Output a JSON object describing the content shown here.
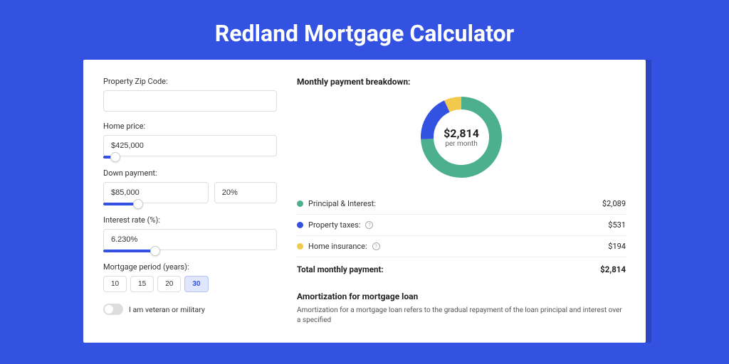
{
  "page": {
    "title": "Redland Mortgage Calculator"
  },
  "form": {
    "zip_label": "Property Zip Code:",
    "zip_value": "",
    "home_price_label": "Home price:",
    "home_price_value": "$425,000",
    "home_price_slider_pct": 7,
    "down_payment_label": "Down payment:",
    "down_payment_value": "$85,000",
    "down_payment_pct": "20%",
    "down_payment_slider_pct": 20,
    "interest_label": "Interest rate (%):",
    "interest_value": "6.230%",
    "interest_slider_pct": 30,
    "period_label": "Mortgage period (years):",
    "periods": [
      "10",
      "15",
      "20",
      "30"
    ],
    "period_active_index": 3,
    "veteran_label": "I am veteran or military",
    "veteran_on": false
  },
  "breakdown": {
    "title": "Monthly payment breakdown:",
    "donut_amount": "$2,814",
    "donut_sub": "per month",
    "items": [
      {
        "label": "Principal & Interest:",
        "value": "$2,089",
        "color": "#4caf8e",
        "fraction": 0.742,
        "info": false
      },
      {
        "label": "Property taxes:",
        "value": "$531",
        "color": "#3452e1",
        "fraction": 0.189,
        "info": true
      },
      {
        "label": "Home insurance:",
        "value": "$194",
        "color": "#f2c94c",
        "fraction": 0.069,
        "info": true
      }
    ],
    "total_label": "Total monthly payment:",
    "total_value": "$2,814",
    "donut": {
      "stroke_width": 18,
      "background": "#ffffff"
    }
  },
  "amort": {
    "title": "Amortization for mortgage loan",
    "text": "Amortization for a mortgage loan refers to the gradual repayment of the loan principal and interest over a specified"
  },
  "colors": {
    "page_bg": "#3452e1",
    "card_bg": "#ffffff",
    "card_shadow": "#2b44c4",
    "input_border": "#dddddd",
    "text": "#333333"
  }
}
